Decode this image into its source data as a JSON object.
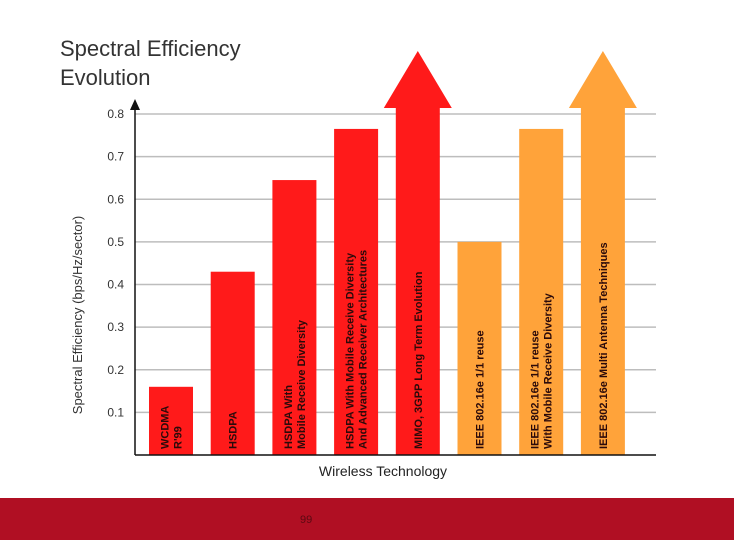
{
  "chart_data": {
    "type": "bar",
    "title_lines": [
      "Spectral Efficiency",
      "Evolution"
    ],
    "xlabel": "Wireless Technology",
    "ylabel": "Spectral Efficiency (bps/Hz/sector)",
    "ylim": [
      0,
      0.8
    ],
    "yticks": [
      "0.1",
      "0.2",
      "0.3",
      "0.4",
      "0.5",
      "0.6",
      "0.7",
      "0.8"
    ],
    "grid": true,
    "bars": [
      {
        "lines": [
          "WCDMA",
          "R'99"
        ],
        "value": 0.16,
        "color": "#ff1a1a",
        "arrow": false
      },
      {
        "lines": [
          "HSDPA"
        ],
        "value": 0.43,
        "color": "#ff1a1a",
        "arrow": false
      },
      {
        "lines": [
          "HSDPA With",
          "Mobile Receive Diversity"
        ],
        "value": 0.645,
        "color": "#ff1a1a",
        "arrow": false
      },
      {
        "lines": [
          "HSDPA With Mobile Receive Diversity",
          "And Advanced Receiver Architectures"
        ],
        "value": 0.765,
        "color": "#ff1a1a",
        "arrow": false
      },
      {
        "lines": [
          "MIMO, 3GPP Long Term Evolution"
        ],
        "value": 0.8,
        "color": "#ff1a1a",
        "arrow": true
      },
      {
        "lines": [
          "IEEE 802.16e 1/1 reuse"
        ],
        "value": 0.5,
        "color": "#ffa33a",
        "arrow": false
      },
      {
        "lines": [
          "IEEE 802.16e 1/1 reuse",
          "With Mobile Receive Diversity"
        ],
        "value": 0.765,
        "color": "#ffa33a",
        "arrow": false
      },
      {
        "lines": [
          "IEEE 802.16e Multi Antenna Techniques"
        ],
        "value": 0.8,
        "color": "#ffa33a",
        "arrow": true
      }
    ]
  },
  "footer": {
    "page_number": "99"
  }
}
